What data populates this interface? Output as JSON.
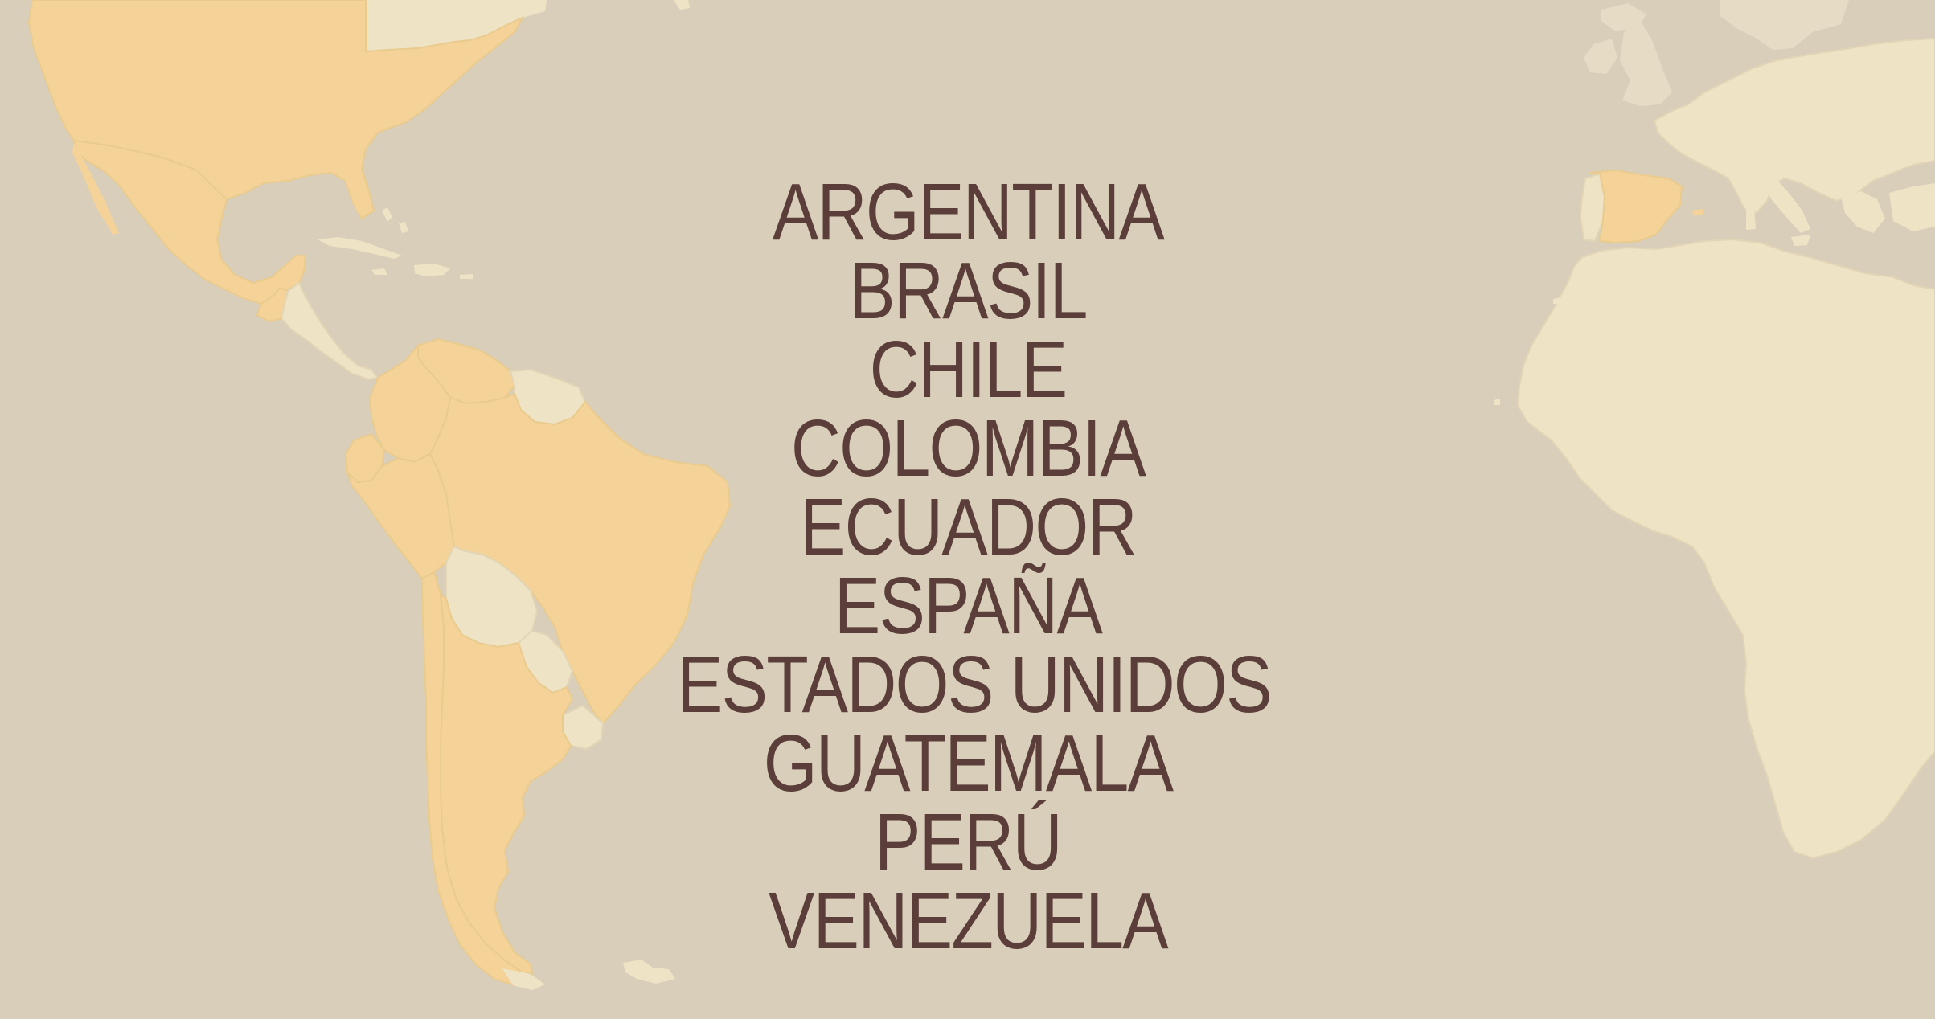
{
  "map": {
    "colors": {
      "ocean": "#d9ceba",
      "highlighted_country": "#f5d398",
      "other_land": "#efe3c6",
      "faded_land": "#e6dbc5",
      "country_border": "#c9bba1",
      "label_text": "#5b3e3a"
    },
    "highlighted_countries": [
      "ARGENTINA",
      "BRASIL",
      "CHILE",
      "COLOMBIA",
      "ECUADOR",
      "ESPAÑA",
      "ESTADOS UNIDOS",
      "GUATEMALA",
      "PERÚ",
      "VENEZUELA"
    ]
  },
  "country_list": [
    "ARGENTINA",
    "BRASIL",
    "CHILE",
    "COLOMBIA",
    "ECUADOR",
    "ESPAÑA",
    "ESTADOS UNIDOS",
    "GUATEMALA",
    "PERÚ",
    "VENEZUELA"
  ]
}
